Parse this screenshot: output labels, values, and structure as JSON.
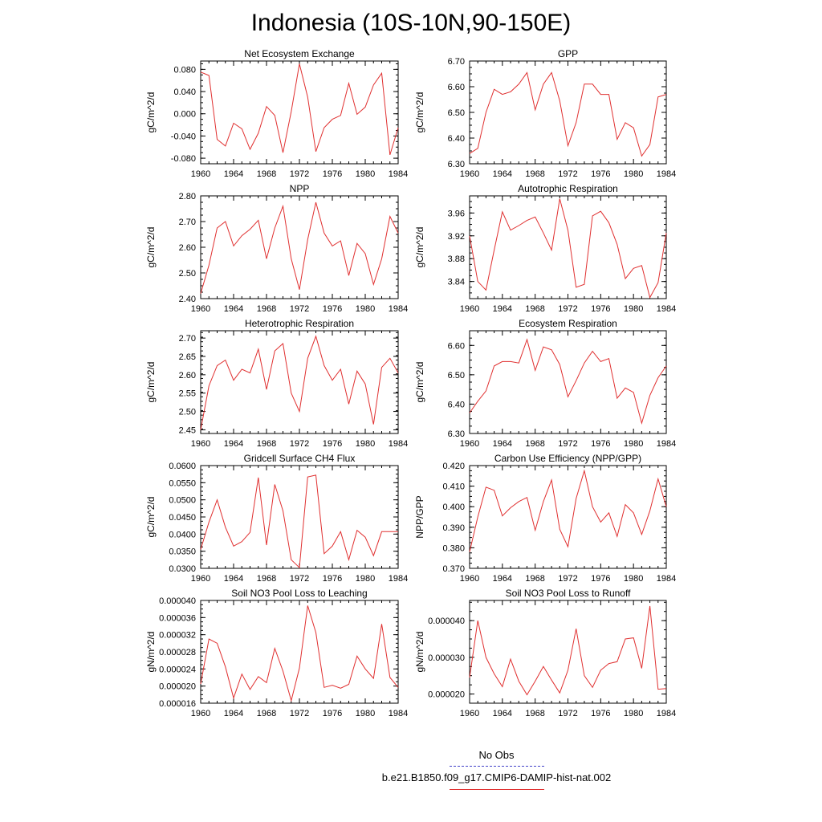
{
  "title": "Indonesia (10S-10N,90-150E)",
  "x_ticks": [
    "1960",
    "1964",
    "1968",
    "1972",
    "1976",
    "1980",
    "1984"
  ],
  "legend": {
    "obs_label": "No Obs",
    "model_label": "b.e21.B1850.f09_g17.CMIP6-DAMIP-hist-nat.002",
    "obs_color": "#4040c8",
    "model_color": "#e03030"
  },
  "chart_data": [
    {
      "type": "line",
      "title": "Net Ecosystem Exchange",
      "ylabel": "gC/m^2/d",
      "xlim": [
        1960,
        1984
      ],
      "ylim": [
        -0.09,
        0.095
      ],
      "yticks": [
        "0.080",
        "0.040",
        "0.000",
        "-0.040",
        "-0.080"
      ],
      "ytick_values": [
        0.08,
        0.04,
        0.0,
        -0.04,
        -0.08
      ],
      "x": [
        1960,
        1961,
        1962,
        1963,
        1964,
        1965,
        1966,
        1967,
        1968,
        1969,
        1970,
        1971,
        1972,
        1973,
        1974,
        1975,
        1976,
        1977,
        1978,
        1979,
        1980,
        1981,
        1982,
        1983,
        1984
      ],
      "values": [
        0.075,
        0.069,
        -0.046,
        -0.058,
        -0.017,
        -0.027,
        -0.064,
        -0.035,
        0.013,
        -0.003,
        -0.07,
        0.004,
        0.09,
        0.03,
        -0.068,
        -0.025,
        -0.01,
        -0.003,
        0.055,
        -0.001,
        0.012,
        0.052,
        0.073,
        -0.074,
        -0.025
      ]
    },
    {
      "type": "line",
      "title": "GPP",
      "ylabel": "gC/m^2/d",
      "xlim": [
        1960,
        1984
      ],
      "ylim": [
        6.3,
        6.7
      ],
      "yticks": [
        "6.70",
        "6.60",
        "6.50",
        "6.40",
        "6.30"
      ],
      "ytick_values": [
        6.7,
        6.6,
        6.5,
        6.4,
        6.3
      ],
      "x": [
        1960,
        1961,
        1962,
        1963,
        1964,
        1965,
        1966,
        1967,
        1968,
        1969,
        1970,
        1971,
        1972,
        1973,
        1974,
        1975,
        1976,
        1977,
        1978,
        1979,
        1980,
        1981,
        1982,
        1983,
        1984
      ],
      "values": [
        6.34,
        6.36,
        6.5,
        6.59,
        6.57,
        6.58,
        6.61,
        6.655,
        6.51,
        6.61,
        6.655,
        6.545,
        6.37,
        6.46,
        6.61,
        6.61,
        6.57,
        6.57,
        6.395,
        6.46,
        6.44,
        6.33,
        6.375,
        6.56,
        6.57
      ]
    },
    {
      "type": "line",
      "title": "NPP",
      "ylabel": "gC/m^2/d",
      "xlim": [
        1960,
        1984
      ],
      "ylim": [
        2.4,
        2.8
      ],
      "yticks": [
        "2.80",
        "2.70",
        "2.60",
        "2.50",
        "2.40"
      ],
      "ytick_values": [
        2.8,
        2.7,
        2.6,
        2.5,
        2.4
      ],
      "x": [
        1960,
        1961,
        1962,
        1963,
        1964,
        1965,
        1966,
        1967,
        1968,
        1969,
        1970,
        1971,
        1972,
        1973,
        1974,
        1975,
        1976,
        1977,
        1978,
        1979,
        1980,
        1981,
        1982,
        1983,
        1984
      ],
      "values": [
        2.42,
        2.53,
        2.675,
        2.7,
        2.605,
        2.645,
        2.67,
        2.705,
        2.555,
        2.675,
        2.76,
        2.555,
        2.435,
        2.63,
        2.775,
        2.655,
        2.605,
        2.625,
        2.49,
        2.615,
        2.575,
        2.455,
        2.555,
        2.72,
        2.655
      ]
    },
    {
      "type": "line",
      "title": "Autotrophic Respiration",
      "ylabel": "gC/m^2/d",
      "xlim": [
        1960,
        1984
      ],
      "ylim": [
        3.81,
        3.99
      ],
      "yticks": [
        "3.96",
        "3.92",
        "3.88",
        "3.84"
      ],
      "ytick_values": [
        3.96,
        3.92,
        3.88,
        3.84
      ],
      "x": [
        1960,
        1961,
        1962,
        1963,
        1964,
        1965,
        1966,
        1967,
        1968,
        1969,
        1970,
        1971,
        1972,
        1973,
        1974,
        1975,
        1976,
        1977,
        1978,
        1979,
        1980,
        1981,
        1982,
        1983,
        1984
      ],
      "values": [
        3.92,
        3.84,
        3.825,
        3.895,
        3.962,
        3.93,
        3.938,
        3.947,
        3.953,
        3.925,
        3.895,
        3.985,
        3.93,
        3.83,
        3.835,
        3.955,
        3.963,
        3.943,
        3.905,
        3.845,
        3.863,
        3.868,
        3.812,
        3.838,
        3.925
      ]
    },
    {
      "type": "line",
      "title": "Heterotrophic Respiration",
      "ylabel": "gC/m^2/d",
      "xlim": [
        1960,
        1984
      ],
      "ylim": [
        2.44,
        2.72
      ],
      "yticks": [
        "2.70",
        "2.65",
        "2.60",
        "2.55",
        "2.50",
        "2.45"
      ],
      "ytick_values": [
        2.7,
        2.65,
        2.6,
        2.55,
        2.5,
        2.45
      ],
      "x": [
        1960,
        1961,
        1962,
        1963,
        1964,
        1965,
        1966,
        1967,
        1968,
        1969,
        1970,
        1971,
        1972,
        1973,
        1974,
        1975,
        1976,
        1977,
        1978,
        1979,
        1980,
        1981,
        1982,
        1983,
        1984
      ],
      "values": [
        2.45,
        2.57,
        2.625,
        2.64,
        2.585,
        2.615,
        2.605,
        2.67,
        2.56,
        2.665,
        2.685,
        2.55,
        2.5,
        2.645,
        2.705,
        2.625,
        2.585,
        2.615,
        2.52,
        2.61,
        2.575,
        2.465,
        2.62,
        2.645,
        2.605
      ]
    },
    {
      "type": "line",
      "title": "Ecosystem Respiration",
      "ylabel": "gC/m^2/d",
      "xlim": [
        1960,
        1984
      ],
      "ylim": [
        6.3,
        6.65
      ],
      "yticks": [
        "6.60",
        "6.50",
        "6.40",
        "6.30"
      ],
      "ytick_values": [
        6.6,
        6.5,
        6.4,
        6.3
      ],
      "x": [
        1960,
        1961,
        1962,
        1963,
        1964,
        1965,
        1966,
        1967,
        1968,
        1969,
        1970,
        1971,
        1972,
        1973,
        1974,
        1975,
        1976,
        1977,
        1978,
        1979,
        1980,
        1981,
        1982,
        1983,
        1984
      ],
      "values": [
        6.37,
        6.41,
        6.445,
        6.53,
        6.545,
        6.545,
        6.54,
        6.62,
        6.515,
        6.595,
        6.585,
        6.535,
        6.425,
        6.48,
        6.54,
        6.58,
        6.545,
        6.555,
        6.42,
        6.455,
        6.44,
        6.335,
        6.43,
        6.49,
        6.53
      ]
    },
    {
      "type": "line",
      "title": "Gridcell Surface CH4 Flux",
      "ylabel": "gC/m^2/d",
      "xlim": [
        1960,
        1984
      ],
      "ylim": [
        0.03,
        0.06
      ],
      "yticks": [
        "0.0600",
        "0.0550",
        "0.0500",
        "0.0450",
        "0.0400",
        "0.0350",
        "0.0300"
      ],
      "ytick_values": [
        0.06,
        0.055,
        0.05,
        0.045,
        0.04,
        0.035,
        0.03
      ],
      "x": [
        1960,
        1961,
        1962,
        1963,
        1964,
        1965,
        1966,
        1967,
        1968,
        1969,
        1970,
        1971,
        1972,
        1973,
        1974,
        1975,
        1976,
        1977,
        1978,
        1979,
        1980,
        1981,
        1982,
        1983,
        1984
      ],
      "values": [
        0.0355,
        0.0435,
        0.05,
        0.042,
        0.0365,
        0.0378,
        0.0405,
        0.0565,
        0.0368,
        0.0545,
        0.0468,
        0.0325,
        0.0302,
        0.0567,
        0.0572,
        0.0343,
        0.0365,
        0.0407,
        0.0325,
        0.0411,
        0.0391,
        0.0337,
        0.0407,
        0.0407,
        0.0407
      ]
    },
    {
      "type": "line",
      "title": "Carbon Use Efficiency (NPP/GPP)",
      "ylabel": "NPP/GPP",
      "xlim": [
        1960,
        1984
      ],
      "ylim": [
        0.37,
        0.42
      ],
      "yticks": [
        "0.420",
        "0.410",
        "0.400",
        "0.390",
        "0.380",
        "0.370"
      ],
      "ytick_values": [
        0.42,
        0.41,
        0.4,
        0.39,
        0.38,
        0.37
      ],
      "x": [
        1960,
        1961,
        1962,
        1963,
        1964,
        1965,
        1966,
        1967,
        1968,
        1969,
        1970,
        1971,
        1972,
        1973,
        1974,
        1975,
        1976,
        1977,
        1978,
        1979,
        1980,
        1981,
        1982,
        1983,
        1984
      ],
      "values": [
        0.378,
        0.395,
        0.4095,
        0.408,
        0.3955,
        0.3995,
        0.4025,
        0.4045,
        0.3885,
        0.4025,
        0.413,
        0.389,
        0.3805,
        0.404,
        0.4175,
        0.4,
        0.3925,
        0.397,
        0.3855,
        0.401,
        0.397,
        0.3865,
        0.398,
        0.4135,
        0.4
      ]
    },
    {
      "type": "line",
      "title": "Soil NO3 Pool Loss to Leaching",
      "ylabel": "gN/m^2/d",
      "xlim": [
        1960,
        1984
      ],
      "ylim": [
        1.6e-05,
        4e-05
      ],
      "yticks": [
        "0.000040",
        "0.000036",
        "0.000032",
        "0.000028",
        "0.000024",
        "0.000020",
        "0.000016"
      ],
      "ytick_values": [
        4e-05,
        3.6e-05,
        3.2e-05,
        2.8e-05,
        2.4e-05,
        2e-05,
        1.6e-05
      ],
      "x": [
        1960,
        1961,
        1962,
        1963,
        1964,
        1965,
        1966,
        1967,
        1968,
        1969,
        1970,
        1971,
        1972,
        1973,
        1974,
        1975,
        1976,
        1977,
        1978,
        1979,
        1980,
        1981,
        1982,
        1983,
        1984
      ],
      "values": [
        2.05e-05,
        3.1e-05,
        3e-05,
        2.45e-05,
        1.72e-05,
        2.28e-05,
        1.92e-05,
        2.22e-05,
        2.08e-05,
        2.88e-05,
        2.35e-05,
        1.66e-05,
        2.42e-05,
        3.88e-05,
        3.25e-05,
        1.97e-05,
        2.02e-05,
        1.95e-05,
        2.04e-05,
        2.7e-05,
        2.4e-05,
        2.18e-05,
        3.45e-05,
        2.2e-05,
        1.97e-05
      ]
    },
    {
      "type": "line",
      "title": "Soil NO3 Pool Loss to Runoff",
      "ylabel": "gN/m^2/d",
      "xlim": [
        1960,
        1984
      ],
      "ylim": [
        1.75e-05,
        4.55e-05
      ],
      "yticks": [
        "0.000040",
        "0.000030",
        "0.000020"
      ],
      "ytick_values": [
        4e-05,
        3e-05,
        2e-05
      ],
      "x": [
        1960,
        1961,
        1962,
        1963,
        1964,
        1965,
        1966,
        1967,
        1968,
        1969,
        1970,
        1971,
        1972,
        1973,
        1974,
        1975,
        1976,
        1977,
        1978,
        1979,
        1980,
        1981,
        1982,
        1983,
        1984
      ],
      "values": [
        2.45e-05,
        4e-05,
        3e-05,
        2.55e-05,
        2.2e-05,
        2.95e-05,
        2.35e-05,
        1.98e-05,
        2.35e-05,
        2.75e-05,
        2.38e-05,
        2.03e-05,
        2.65e-05,
        3.78e-05,
        2.5e-05,
        2.18e-05,
        2.65e-05,
        2.83e-05,
        2.88e-05,
        3.5e-05,
        3.53e-05,
        2.7e-05,
        4.4e-05,
        2.13e-05,
        2.15e-05
      ]
    }
  ]
}
